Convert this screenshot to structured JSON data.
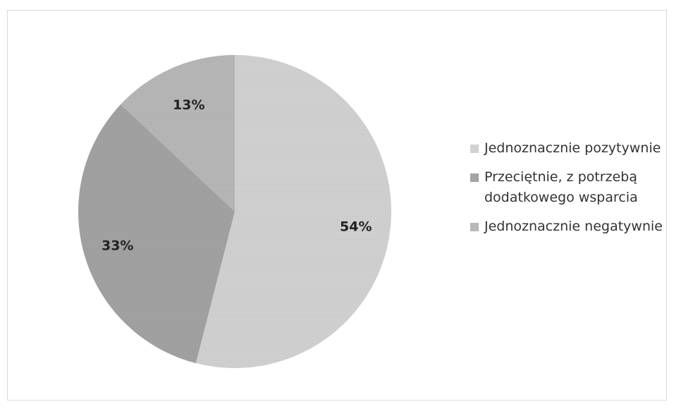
{
  "chart_data": {
    "type": "pie",
    "title": "",
    "legend_position": "right",
    "slices": [
      {
        "label": "Jednoznacznie pozytywnie",
        "value": 54,
        "display": "54%",
        "color": "#d2d2d2"
      },
      {
        "label": "Przeciętnie, z potrzebą dodatkowego wsparcia",
        "value": 33,
        "display": "33%",
        "color": "#a3a3a3"
      },
      {
        "label": "Jednoznacznie negatywnie",
        "value": 13,
        "display": "13%",
        "color": "#b8b8b8"
      }
    ]
  }
}
